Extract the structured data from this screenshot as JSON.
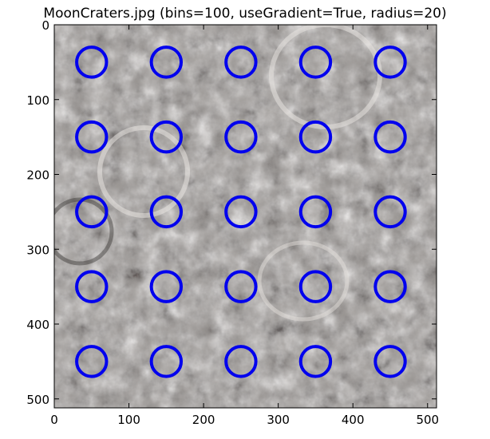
{
  "chart_data": {
    "type": "scatter",
    "title": "MoonCraters.jpg (bins=100, useGradient=True, radius=20)",
    "xlabel": "",
    "ylabel": "",
    "xlim": [
      0,
      512
    ],
    "ylim": [
      512,
      0
    ],
    "y_inverted": true,
    "x_ticks": [
      0,
      100,
      200,
      300,
      400,
      500
    ],
    "y_ticks": [
      0,
      100,
      200,
      300,
      400,
      500
    ],
    "marker": "circle",
    "marker_radius": 20,
    "marker_color": "#0000ee",
    "background": "grayscale moon crater photograph",
    "points": [
      {
        "x": 50,
        "y": 50
      },
      {
        "x": 150,
        "y": 50
      },
      {
        "x": 250,
        "y": 50
      },
      {
        "x": 350,
        "y": 50
      },
      {
        "x": 450,
        "y": 50
      },
      {
        "x": 50,
        "y": 150
      },
      {
        "x": 150,
        "y": 150
      },
      {
        "x": 250,
        "y": 150
      },
      {
        "x": 350,
        "y": 150
      },
      {
        "x": 450,
        "y": 150
      },
      {
        "x": 50,
        "y": 250
      },
      {
        "x": 150,
        "y": 250
      },
      {
        "x": 250,
        "y": 250
      },
      {
        "x": 350,
        "y": 250
      },
      {
        "x": 450,
        "y": 250
      },
      {
        "x": 50,
        "y": 350
      },
      {
        "x": 150,
        "y": 350
      },
      {
        "x": 250,
        "y": 350
      },
      {
        "x": 350,
        "y": 350
      },
      {
        "x": 450,
        "y": 350
      },
      {
        "x": 50,
        "y": 450
      },
      {
        "x": 150,
        "y": 450
      },
      {
        "x": 250,
        "y": 450
      },
      {
        "x": 350,
        "y": 450
      },
      {
        "x": 450,
        "y": 450
      }
    ]
  }
}
